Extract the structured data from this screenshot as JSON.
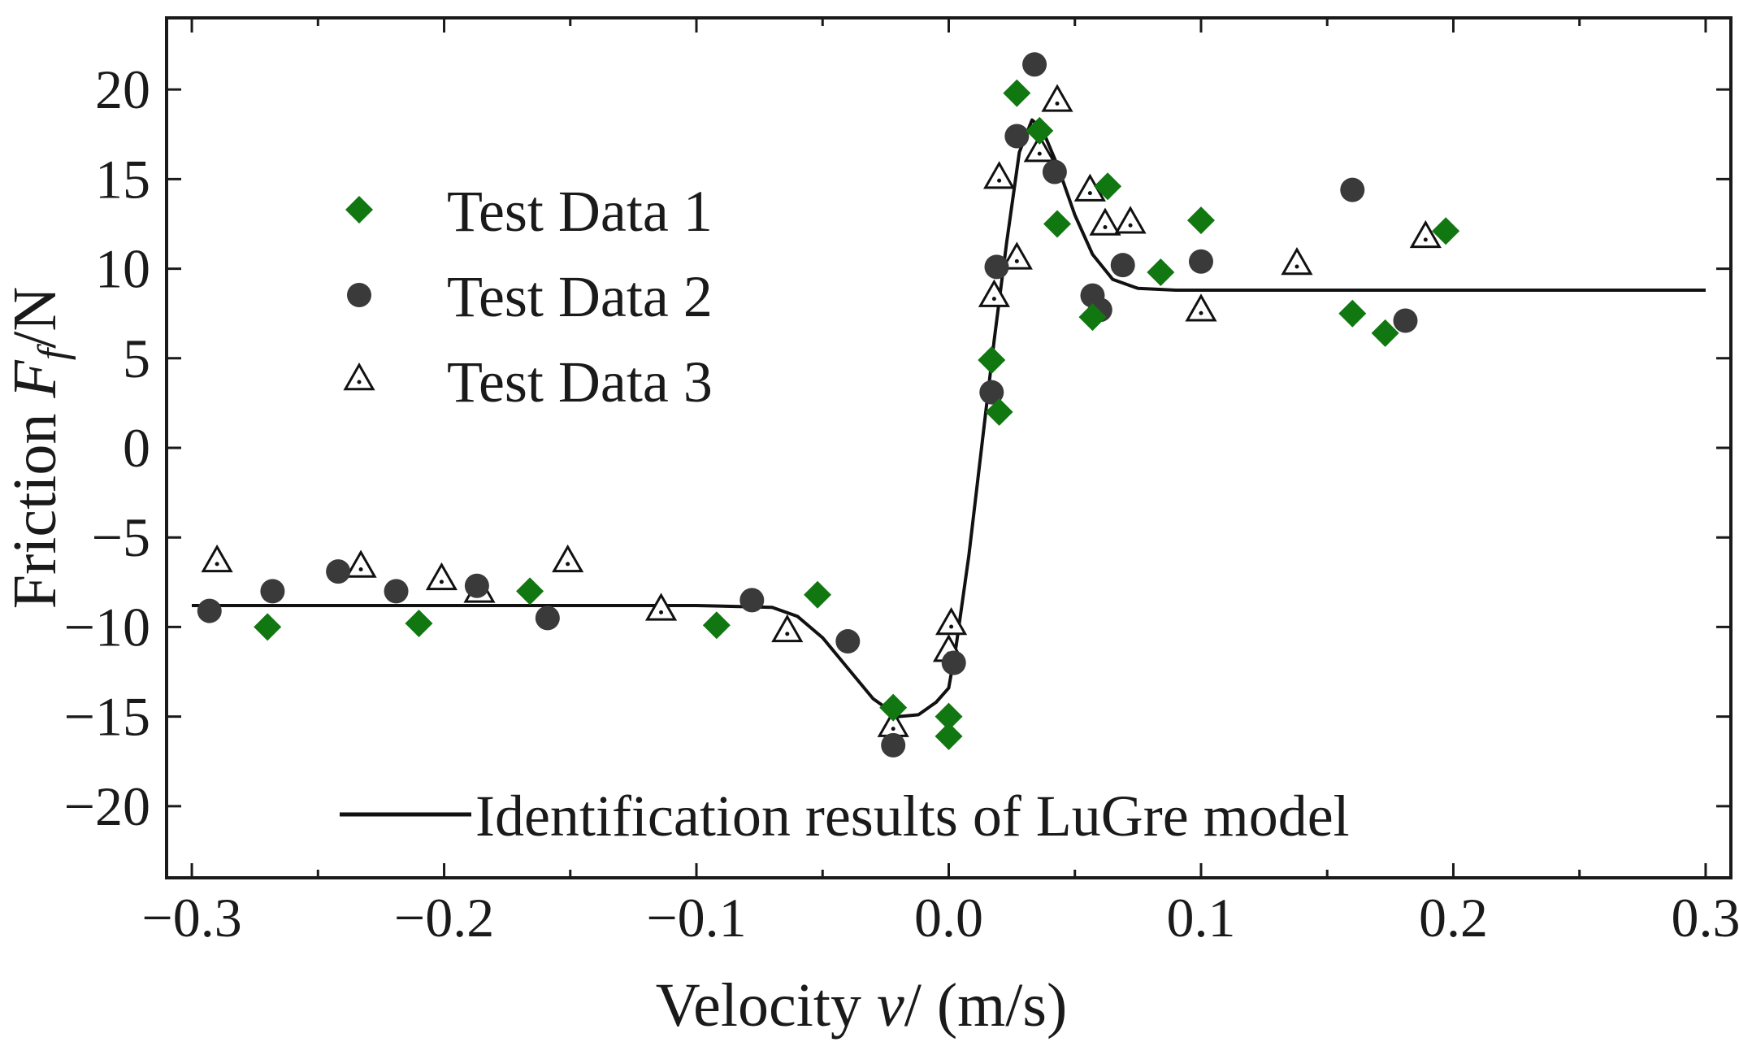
{
  "chart_data": {
    "type": "scatter",
    "xlabel": {
      "prefix": "Velocity ",
      "symbol": "v",
      "suffix": "/ (m/s)"
    },
    "ylabel": {
      "prefix": "Friction ",
      "symbol": "F",
      "subscript": "f",
      "suffix": "/N"
    },
    "xlim": [
      -0.31,
      0.31
    ],
    "ylim": [
      -24,
      24
    ],
    "xticks": [
      -0.3,
      -0.2,
      -0.1,
      0.0,
      0.1,
      0.2,
      0.3
    ],
    "xtick_labels": [
      "−0.3",
      "−0.2",
      "−0.1",
      "0.0",
      "0.1",
      "0.2",
      "0.3"
    ],
    "yticks": [
      -20,
      -15,
      -10,
      -5,
      0,
      5,
      10,
      15,
      20
    ],
    "ytick_labels": [
      "−20",
      "−15",
      "−10",
      "−5",
      "0",
      "5",
      "10",
      "15",
      "20"
    ],
    "grid": false,
    "legend": {
      "placement": "upper-left",
      "line_placement": "bottom-center"
    },
    "colors": {
      "test1": "#117711",
      "test2": "#3a3a3a",
      "test3": "#ffffff",
      "fit": "#111111",
      "axis": "#1a1a1a"
    },
    "series": [
      {
        "name": "Test Data 1",
        "marker": "diamond",
        "points": [
          [
            -0.27,
            -10.0
          ],
          [
            -0.21,
            -9.8
          ],
          [
            -0.166,
            -8.0
          ],
          [
            -0.092,
            -9.9
          ],
          [
            -0.052,
            -8.2
          ],
          [
            -0.022,
            -14.5
          ],
          [
            0.0,
            -15.0
          ],
          [
            0.0,
            -16.1
          ],
          [
            0.017,
            4.9
          ],
          [
            0.02,
            2.0
          ],
          [
            0.027,
            19.8
          ],
          [
            0.036,
            17.7
          ],
          [
            0.043,
            12.5
          ],
          [
            0.057,
            7.3
          ],
          [
            0.063,
            14.6
          ],
          [
            0.084,
            9.8
          ],
          [
            0.1,
            12.7
          ],
          [
            0.16,
            7.5
          ],
          [
            0.173,
            6.4
          ],
          [
            0.197,
            12.1
          ]
        ]
      },
      {
        "name": "Test Data 2",
        "marker": "circle",
        "points": [
          [
            -0.293,
            -9.1
          ],
          [
            -0.268,
            -8.0
          ],
          [
            -0.242,
            -6.9
          ],
          [
            -0.219,
            -8.0
          ],
          [
            -0.187,
            -7.7
          ],
          [
            -0.159,
            -9.5
          ],
          [
            -0.078,
            -8.5
          ],
          [
            -0.04,
            -10.8
          ],
          [
            -0.022,
            -16.6
          ],
          [
            0.002,
            -12.0
          ],
          [
            0.017,
            3.1
          ],
          [
            0.019,
            10.1
          ],
          [
            0.027,
            17.4
          ],
          [
            0.034,
            21.4
          ],
          [
            0.042,
            15.4
          ],
          [
            0.057,
            8.5
          ],
          [
            0.06,
            7.7
          ],
          [
            0.069,
            10.2
          ],
          [
            0.1,
            10.4
          ],
          [
            0.16,
            14.4
          ],
          [
            0.181,
            7.1
          ]
        ]
      },
      {
        "name": "Test Data 3",
        "marker": "triangle",
        "points": [
          [
            -0.29,
            -6.3
          ],
          [
            -0.233,
            -6.6
          ],
          [
            -0.201,
            -7.3
          ],
          [
            -0.186,
            -8.0
          ],
          [
            -0.151,
            -6.3
          ],
          [
            -0.114,
            -9.0
          ],
          [
            -0.064,
            -10.2
          ],
          [
            -0.022,
            -15.5
          ],
          [
            0.001,
            -9.8
          ],
          [
            0.0,
            -11.3
          ],
          [
            0.018,
            8.5
          ],
          [
            0.02,
            15.1
          ],
          [
            0.027,
            10.6
          ],
          [
            0.036,
            16.6
          ],
          [
            0.043,
            19.4
          ],
          [
            0.056,
            14.4
          ],
          [
            0.062,
            12.5
          ],
          [
            0.072,
            12.6
          ],
          [
            0.1,
            7.7
          ],
          [
            0.138,
            10.3
          ],
          [
            0.189,
            11.8
          ]
        ]
      }
    ],
    "fit_line": {
      "name": "Identification results of LuGre model",
      "points": [
        [
          -0.3,
          -8.8
        ],
        [
          -0.1,
          -8.8
        ],
        [
          -0.07,
          -8.9
        ],
        [
          -0.06,
          -9.4
        ],
        [
          -0.05,
          -10.6
        ],
        [
          -0.04,
          -12.3
        ],
        [
          -0.03,
          -14.0
        ],
        [
          -0.02,
          -15.0
        ],
        [
          -0.012,
          -14.9
        ],
        [
          -0.005,
          -14.2
        ],
        [
          0.0,
          -13.4
        ],
        [
          0.003,
          -11.0
        ],
        [
          0.008,
          -6.0
        ],
        [
          0.013,
          0.0
        ],
        [
          0.018,
          6.0
        ],
        [
          0.023,
          11.5
        ],
        [
          0.028,
          16.5
        ],
        [
          0.033,
          18.3
        ],
        [
          0.037,
          17.8
        ],
        [
          0.043,
          15.8
        ],
        [
          0.05,
          13.0
        ],
        [
          0.057,
          10.8
        ],
        [
          0.065,
          9.4
        ],
        [
          0.075,
          8.9
        ],
        [
          0.09,
          8.8
        ],
        [
          0.3,
          8.8
        ]
      ]
    }
  }
}
